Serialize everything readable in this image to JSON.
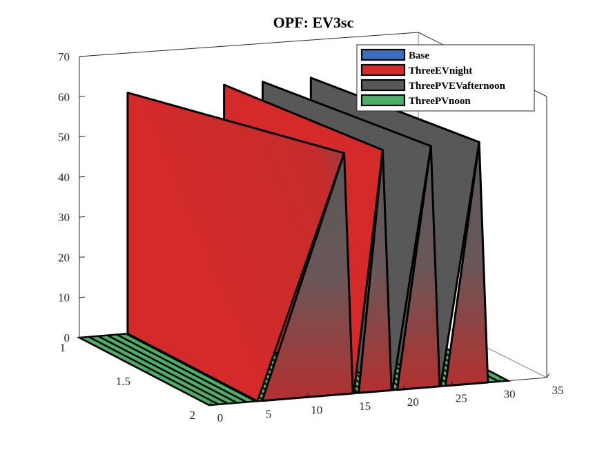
{
  "chart_data": {
    "type": "surface-3d",
    "title": "OPF: EV3sc",
    "xlabel": "",
    "ylabel": "",
    "zlabel": "",
    "x_ticks": [
      "0",
      "5",
      "10",
      "15",
      "20",
      "25",
      "30",
      "35"
    ],
    "y_ticks": [
      "1",
      "1.5",
      "2"
    ],
    "z_ticks": [
      "0",
      "10",
      "20",
      "30",
      "40",
      "50",
      "60",
      "70"
    ],
    "xlim": [
      0,
      35
    ],
    "ylim": [
      1,
      2
    ],
    "zlim": [
      0,
      70
    ],
    "grid": false,
    "legend_position": "top-right",
    "series": [
      {
        "name": "Base",
        "color": "#3a6fbf"
      },
      {
        "name": "ThreeEVnight",
        "color": "#d42a2a"
      },
      {
        "name": "ThreePVEVafternoon",
        "color": "#595859"
      },
      {
        "name": "ThreePVnoon",
        "color": "#49b066"
      }
    ],
    "spikes": [
      {
        "x_start": 5,
        "x_end": 14,
        "x_back": 14,
        "peak": 60
      },
      {
        "x_start": 15,
        "x_end": 18,
        "x_back": 18,
        "peak": 60
      },
      {
        "x_start": 19,
        "x_end": 23,
        "x_back": 22,
        "peak": 60
      },
      {
        "x_start": 24,
        "x_end": 28,
        "x_back": 26,
        "peak": 60
      }
    ],
    "floor_lines_count": 32,
    "floor_color": "#49b066"
  }
}
